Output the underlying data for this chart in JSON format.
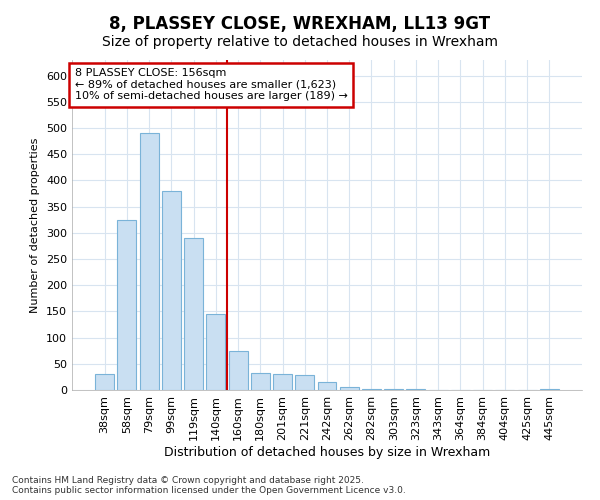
{
  "title": "8, PLASSEY CLOSE, WREXHAM, LL13 9GT",
  "subtitle": "Size of property relative to detached houses in Wrexham",
  "xlabel": "Distribution of detached houses by size in Wrexham",
  "ylabel": "Number of detached properties",
  "footnote": "Contains HM Land Registry data © Crown copyright and database right 2025.\nContains public sector information licensed under the Open Government Licence v3.0.",
  "bar_labels": [
    "38sqm",
    "58sqm",
    "79sqm",
    "99sqm",
    "119sqm",
    "140sqm",
    "160sqm",
    "180sqm",
    "201sqm",
    "221sqm",
    "242sqm",
    "262sqm",
    "282sqm",
    "303sqm",
    "323sqm",
    "343sqm",
    "364sqm",
    "384sqm",
    "404sqm",
    "425sqm",
    "445sqm"
  ],
  "bar_values": [
    30,
    325,
    490,
    380,
    290,
    145,
    75,
    32,
    30,
    28,
    15,
    5,
    2,
    1,
    1,
    0,
    0,
    0,
    0,
    0,
    1
  ],
  "bar_color": "#c9dff2",
  "bar_edge_color": "#7ab3d8",
  "annotation_box_text": "8 PLASSEY CLOSE: 156sqm\n← 89% of detached houses are smaller (1,623)\n10% of semi-detached houses are larger (189) →",
  "annotation_box_color": "#cc0000",
  "vline_color": "#cc0000",
  "vline_position": 5.5,
  "ylim": [
    0,
    630
  ],
  "yticks": [
    0,
    50,
    100,
    150,
    200,
    250,
    300,
    350,
    400,
    450,
    500,
    550,
    600
  ],
  "background_color": "#ffffff",
  "plot_background_color": "#ffffff",
  "grid_color": "#d8e4f0",
  "title_fontsize": 12,
  "subtitle_fontsize": 10,
  "xlabel_fontsize": 9,
  "ylabel_fontsize": 8,
  "tick_fontsize": 8,
  "annotation_fontsize": 8,
  "footnote_fontsize": 6.5
}
